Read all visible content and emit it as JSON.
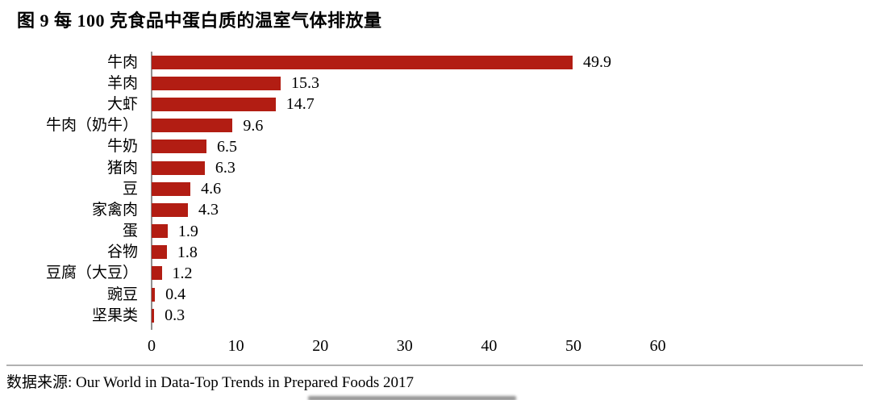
{
  "title": "图 9  每 100 克食品中蛋白质的温室气体排放量",
  "source": "数据来源: Our World in Data-Top Trends in Prepared Foods 2017",
  "colors": {
    "bar": "#b21d13",
    "axis_line": "#8f8f8f",
    "separator": "#b1b1b1",
    "text": "#000000"
  },
  "chart_data": {
    "type": "bar",
    "orientation": "horizontal",
    "title": "图 9  每 100 克食品中蛋白质的温室气体排放量",
    "categories": [
      "牛肉",
      "羊肉",
      "大虾",
      "牛肉（奶牛）",
      "牛奶",
      "猪肉",
      "豆",
      "家禽肉",
      "蛋",
      "谷物",
      "豆腐（大豆）",
      "豌豆",
      "坚果类"
    ],
    "values": [
      49.9,
      15.3,
      14.7,
      9.6,
      6.5,
      6.3,
      4.6,
      4.3,
      1.9,
      1.8,
      1.2,
      0.4,
      0.3
    ],
    "data_labels": [
      "49.9",
      "15.3",
      "14.7",
      "9.6",
      "6.5",
      "6.3",
      "4.6",
      "4.3",
      "1.9",
      "1.8",
      "1.2",
      "0.4",
      "0.3"
    ],
    "xlabel": "",
    "ylabel": "",
    "xlim": [
      0,
      60
    ],
    "xticks": [
      0,
      10,
      20,
      30,
      40,
      50,
      60
    ],
    "grid": false,
    "legend": false
  }
}
